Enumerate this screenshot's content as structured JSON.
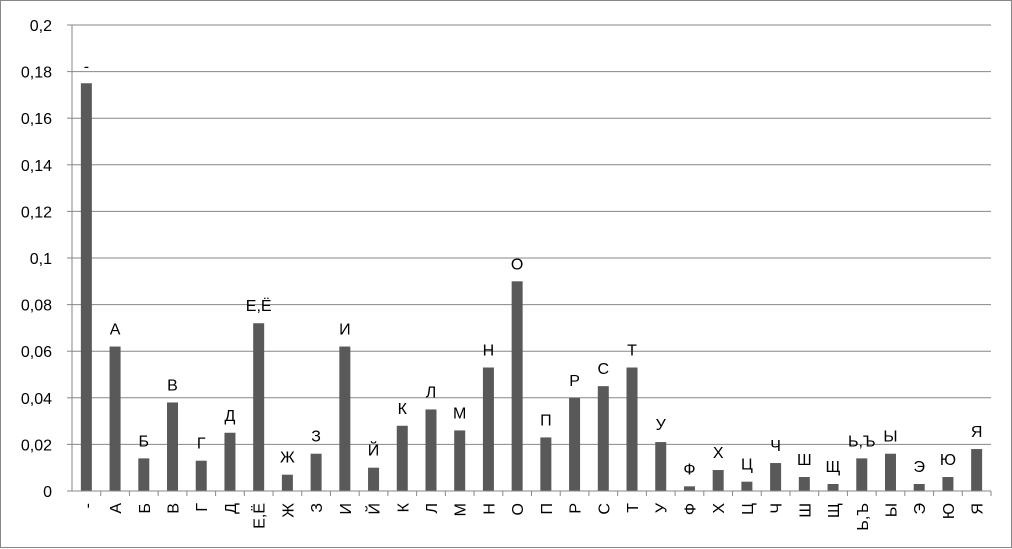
{
  "chart_data": {
    "type": "bar",
    "title": "",
    "xlabel": "",
    "ylabel": "",
    "ylim": [
      0,
      0.2
    ],
    "y_ticks": [
      "0",
      "0,02",
      "0,04",
      "0,06",
      "0,08",
      "0,1",
      "0,12",
      "0,14",
      "0,16",
      "0,18",
      "0,2"
    ],
    "grid": true,
    "legend": "none",
    "bar_color": "#595959",
    "categories": [
      "-",
      "А",
      "Б",
      "В",
      "Г",
      "Д",
      "Е,Ё",
      "Ж",
      "З",
      "И",
      "Й",
      "К",
      "Л",
      "М",
      "Н",
      "О",
      "П",
      "Р",
      "С",
      "Т",
      "У",
      "Ф",
      "Х",
      "Ц",
      "Ч",
      "Ш",
      "Щ",
      "Ь,Ъ",
      "Ы",
      "Э",
      "Ю",
      "Я"
    ],
    "values": [
      0.175,
      0.062,
      0.014,
      0.038,
      0.013,
      0.025,
      0.072,
      0.007,
      0.016,
      0.062,
      0.01,
      0.028,
      0.035,
      0.026,
      0.053,
      0.09,
      0.023,
      0.04,
      0.045,
      0.053,
      0.021,
      0.002,
      0.009,
      0.004,
      0.012,
      0.006,
      0.003,
      0.014,
      0.016,
      0.003,
      0.006,
      0.018
    ],
    "data_labels": [
      "-",
      "А",
      "Б",
      "В",
      "Г",
      "Д",
      "Е,Ё",
      "Ж",
      "З",
      "И",
      "Й",
      "К",
      "Л",
      "М",
      "Н",
      "О",
      "П",
      "Р",
      "С",
      "Т",
      "У",
      "Ф",
      "Х",
      "Ц",
      "Ч",
      "Ш",
      "Щ",
      "Ь,Ъ",
      "Ы",
      "Э",
      "Ю",
      "Я"
    ]
  }
}
